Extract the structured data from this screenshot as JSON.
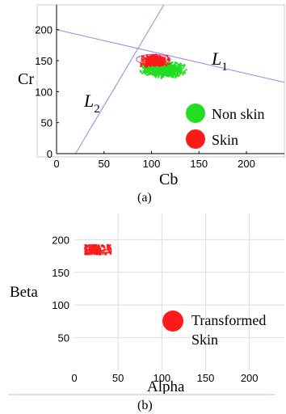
{
  "chart_data": [
    {
      "type": "scatter",
      "panel_label": "(a)",
      "xlabel": "Cb",
      "ylabel": "Cr",
      "xlim": [
        0,
        240
      ],
      "ylim": [
        0,
        240
      ],
      "x_ticks": [
        0,
        50,
        100,
        150,
        200
      ],
      "y_ticks": [
        0,
        50,
        100,
        150,
        200
      ],
      "grid": false,
      "line_labels": {
        "L1": "L1",
        "L2": "L2"
      },
      "lines": [
        {
          "name": "L1",
          "x": [
            0,
            240
          ],
          "y": [
            200,
            115
          ]
        },
        {
          "name": "L2",
          "x": [
            20,
            113
          ],
          "y": [
            0,
            240
          ]
        }
      ],
      "ellipse": {
        "cx": 102,
        "cy": 152,
        "rx": 18,
        "ry": 8,
        "color": "#c060c0"
      },
      "legend": {
        "placement": "bottom-right",
        "entries": [
          {
            "label": "Non skin",
            "color": "#22dd22"
          },
          {
            "label": "Skin",
            "color": "#ff1a1a"
          }
        ]
      },
      "series": [
        {
          "name": "Non skin",
          "color": "#22dd22",
          "cluster": {
            "x": [
              85,
              140
            ],
            "y": [
              120,
              150
            ],
            "center": [
              112,
              136
            ]
          }
        },
        {
          "name": "Skin",
          "color": "#ff1a1a",
          "cluster": {
            "x": [
              88,
              125
            ],
            "y": [
              135,
              160
            ],
            "center": [
              103,
              150
            ]
          }
        }
      ]
    },
    {
      "type": "scatter",
      "panel_label": "(b)",
      "xlabel": "Alpha",
      "ylabel": "Beta",
      "xlim": [
        0,
        240
      ],
      "ylim": [
        0,
        240
      ],
      "x_ticks": [
        0,
        50,
        100,
        150,
        200
      ],
      "y_ticks": [
        50,
        100,
        150,
        200
      ],
      "grid": true,
      "legend": {
        "placement": "bottom-right",
        "entries": [
          {
            "label": "Transformed",
            "label2": "Skin",
            "color": "#ff1a1a"
          }
        ]
      },
      "series": [
        {
          "name": "Transformed Skin",
          "color": "#ff1a1a",
          "cluster": {
            "x": [
              12,
              42
            ],
            "y": [
              177,
              192
            ],
            "center": [
              24,
              184
            ]
          }
        }
      ]
    }
  ],
  "colors": {
    "line": "#9999dd",
    "axis": "#000000",
    "grid": "#dddddd"
  }
}
